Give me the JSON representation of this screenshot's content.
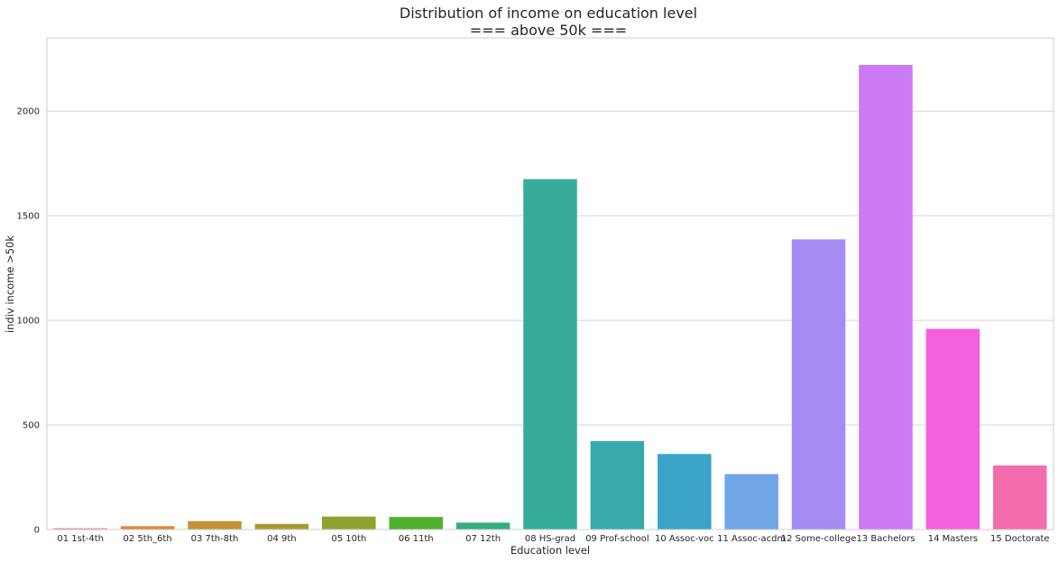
{
  "chart_data": {
    "type": "bar",
    "title_line1": "Distribution of income on education level",
    "title_line2": "=== above 50k ===",
    "xlabel": "Education level",
    "ylabel": "indiv income >50k",
    "categories": [
      "01 1st-4th",
      "02 5th_6th",
      "03 7th-8th",
      "04 9th",
      "05 10th",
      "06 11th",
      "07 12th",
      "08 HS-grad",
      "09 Prof-school",
      "10 Assoc-voc",
      "11 Assoc-acdm",
      "12 Some-college",
      "13 Bachelors",
      "14 Masters",
      "15 Doctorate"
    ],
    "values": [
      6,
      16,
      40,
      27,
      62,
      60,
      33,
      1675,
      423,
      361,
      265,
      1387,
      2221,
      959,
      306
    ],
    "colors": [
      "#f77189",
      "#e38538",
      "#c49136",
      "#a59c31",
      "#8ea231",
      "#50b131",
      "#35ae7f",
      "#36ad9b",
      "#38aaac",
      "#3ba3c8",
      "#6ea6e6",
      "#a48cf4",
      "#cc7af4",
      "#f461dd",
      "#f36dac"
    ],
    "yticks": [
      0,
      500,
      1000,
      1500,
      2000
    ],
    "ylim": [
      0,
      2350
    ],
    "grid": true
  }
}
